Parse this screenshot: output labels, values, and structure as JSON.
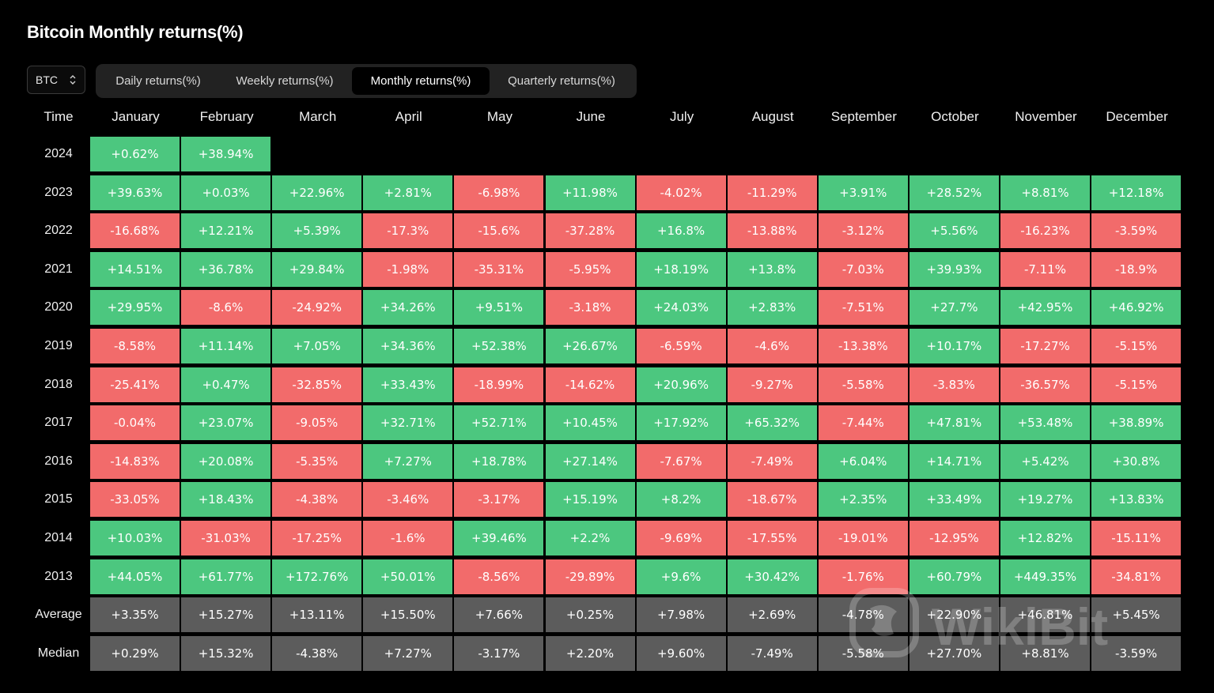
{
  "title": "Bitcoin Monthly returns(%)",
  "asset_select": {
    "value": "BTC"
  },
  "tabs": [
    {
      "label": "Daily returns(%)",
      "active": false
    },
    {
      "label": "Weekly returns(%)",
      "active": false
    },
    {
      "label": "Monthly returns(%)",
      "active": true
    },
    {
      "label": "Quarterly returns(%)",
      "active": false
    }
  ],
  "table": {
    "time_header": "Time",
    "months": [
      "January",
      "February",
      "March",
      "April",
      "May",
      "June",
      "July",
      "August",
      "September",
      "October",
      "November",
      "December"
    ],
    "rows": [
      {
        "label": "2024",
        "values": [
          "+0.62%",
          "+38.94%",
          "",
          "",
          "",
          "",
          "",
          "",
          "",
          "",
          "",
          ""
        ]
      },
      {
        "label": "2023",
        "values": [
          "+39.63%",
          "+0.03%",
          "+22.96%",
          "+2.81%",
          "-6.98%",
          "+11.98%",
          "-4.02%",
          "-11.29%",
          "+3.91%",
          "+28.52%",
          "+8.81%",
          "+12.18%"
        ]
      },
      {
        "label": "2022",
        "values": [
          "-16.68%",
          "+12.21%",
          "+5.39%",
          "-17.3%",
          "-15.6%",
          "-37.28%",
          "+16.8%",
          "-13.88%",
          "-3.12%",
          "+5.56%",
          "-16.23%",
          "-3.59%"
        ]
      },
      {
        "label": "2021",
        "values": [
          "+14.51%",
          "+36.78%",
          "+29.84%",
          "-1.98%",
          "-35.31%",
          "-5.95%",
          "+18.19%",
          "+13.8%",
          "-7.03%",
          "+39.93%",
          "-7.11%",
          "-18.9%"
        ]
      },
      {
        "label": "2020",
        "values": [
          "+29.95%",
          "-8.6%",
          "-24.92%",
          "+34.26%",
          "+9.51%",
          "-3.18%",
          "+24.03%",
          "+2.83%",
          "-7.51%",
          "+27.7%",
          "+42.95%",
          "+46.92%"
        ]
      },
      {
        "label": "2019",
        "values": [
          "-8.58%",
          "+11.14%",
          "+7.05%",
          "+34.36%",
          "+52.38%",
          "+26.67%",
          "-6.59%",
          "-4.6%",
          "-13.38%",
          "+10.17%",
          "-17.27%",
          "-5.15%"
        ]
      },
      {
        "label": "2018",
        "values": [
          "-25.41%",
          "+0.47%",
          "-32.85%",
          "+33.43%",
          "-18.99%",
          "-14.62%",
          "+20.96%",
          "-9.27%",
          "-5.58%",
          "-3.83%",
          "-36.57%",
          "-5.15%"
        ]
      },
      {
        "label": "2017",
        "values": [
          "-0.04%",
          "+23.07%",
          "-9.05%",
          "+32.71%",
          "+52.71%",
          "+10.45%",
          "+17.92%",
          "+65.32%",
          "-7.44%",
          "+47.81%",
          "+53.48%",
          "+38.89%"
        ]
      },
      {
        "label": "2016",
        "values": [
          "-14.83%",
          "+20.08%",
          "-5.35%",
          "+7.27%",
          "+18.78%",
          "+27.14%",
          "-7.67%",
          "-7.49%",
          "+6.04%",
          "+14.71%",
          "+5.42%",
          "+30.8%"
        ]
      },
      {
        "label": "2015",
        "values": [
          "-33.05%",
          "+18.43%",
          "-4.38%",
          "-3.46%",
          "-3.17%",
          "+15.19%",
          "+8.2%",
          "-18.67%",
          "+2.35%",
          "+33.49%",
          "+19.27%",
          "+13.83%"
        ]
      },
      {
        "label": "2014",
        "values": [
          "+10.03%",
          "-31.03%",
          "-17.25%",
          "-1.6%",
          "+39.46%",
          "+2.2%",
          "-9.69%",
          "-17.55%",
          "-19.01%",
          "-12.95%",
          "+12.82%",
          "-15.11%"
        ]
      },
      {
        "label": "2013",
        "values": [
          "+44.05%",
          "+61.77%",
          "+172.76%",
          "+50.01%",
          "-8.56%",
          "-29.89%",
          "+9.6%",
          "+30.42%",
          "-1.76%",
          "+60.79%",
          "+449.35%",
          "-34.81%"
        ]
      }
    ],
    "summary_rows": [
      {
        "label": "Average",
        "values": [
          "+3.35%",
          "+15.27%",
          "+13.11%",
          "+15.50%",
          "+7.66%",
          "+0.25%",
          "+7.98%",
          "+2.69%",
          "-4.78%",
          "+22.90%",
          "+46.81%",
          "+5.45%"
        ]
      },
      {
        "label": "Median",
        "values": [
          "+0.29%",
          "+15.32%",
          "-4.38%",
          "+7.27%",
          "-3.17%",
          "+2.20%",
          "+9.60%",
          "-7.49%",
          "-5.58%",
          "+27.70%",
          "+8.81%",
          "-3.59%"
        ]
      }
    ]
  },
  "colors": {
    "positive": "#4cc77f",
    "negative": "#f26b6b",
    "summary": "#5c5c5c",
    "background": "#000000"
  },
  "watermark": {
    "text": "WikiBit"
  }
}
